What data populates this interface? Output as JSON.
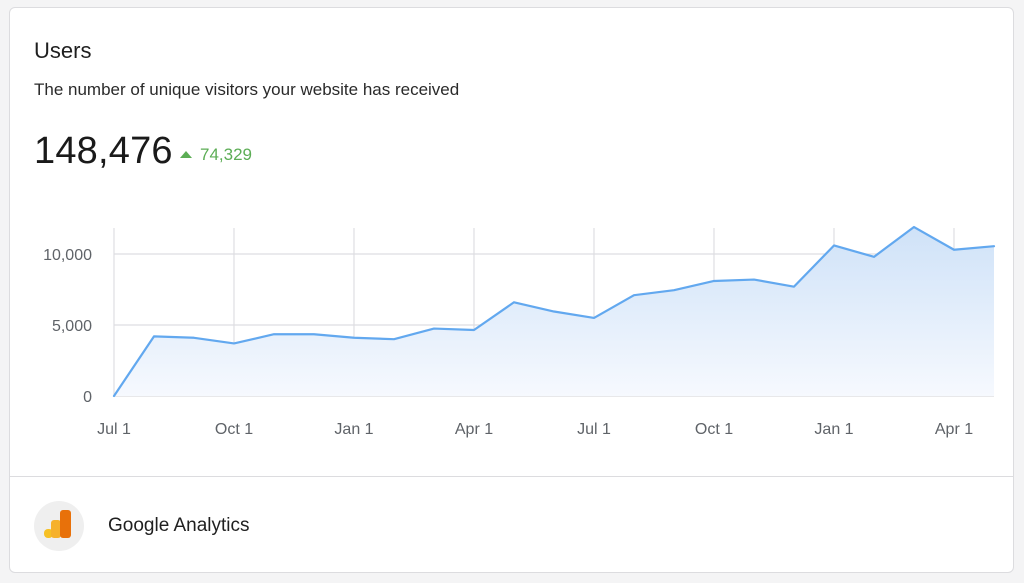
{
  "card": {
    "title": "Users",
    "subtitle": "The number of unique visitors your website has received",
    "metric": "148,476",
    "delta": "74,329"
  },
  "footer": {
    "source": "Google Analytics",
    "logo_icon": "google-analytics-icon"
  },
  "colors": {
    "line": "#62a8ef",
    "area_top": "#cfe2f8",
    "area_bottom": "#f6f9fe",
    "grid": "#dedee2",
    "delta": "#5cad55",
    "axis_text": "#5f6368"
  },
  "chart_data": {
    "type": "area",
    "x": [
      "Jul 1",
      "",
      "",
      "Oct 1",
      "",
      "",
      "Jan 1",
      "",
      "",
      "Apr 1",
      "",
      "",
      "Jul 1",
      "",
      "",
      "Oct 1",
      "",
      "",
      "Jan 1",
      "",
      "",
      "Apr 1",
      ""
    ],
    "x_tick_labels": [
      "Jul 1",
      "Oct 1",
      "Jan 1",
      "Apr 1",
      "Jul 1",
      "Oct 1",
      "Jan 1",
      "Apr 1"
    ],
    "values": [
      0,
      4200,
      4100,
      3700,
      4350,
      4350,
      4100,
      4000,
      4750,
      4650,
      6600,
      5950,
      5500,
      7100,
      7450,
      8100,
      8200,
      7700,
      10600,
      9800,
      11900,
      10300,
      10550
    ],
    "y_ticks": [
      0,
      5000,
      10000
    ],
    "y_tick_labels": [
      "0",
      "5,000",
      "10,000"
    ],
    "ylim": [
      0,
      12000
    ],
    "grid": true,
    "title": "",
    "xlabel": "",
    "ylabel": ""
  }
}
